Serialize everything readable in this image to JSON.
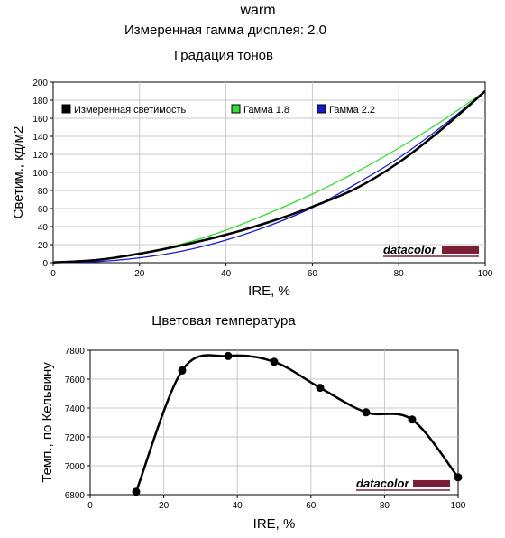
{
  "header": {
    "profile": "warm",
    "gamma": "Измеренная гамма дисплея: 2,0"
  },
  "logo": {
    "text": "datacolor",
    "bar_color": "#7a1f35"
  },
  "chart_data": [
    {
      "type": "line",
      "title": "Градация тонов",
      "xlabel": "IRE, %",
      "ylabel": "Светим., кд/м2",
      "xlim": [
        0,
        100
      ],
      "ylim": [
        0,
        200
      ],
      "xticks": [
        0,
        20,
        40,
        60,
        80,
        100
      ],
      "yticks": [
        0,
        20,
        40,
        60,
        80,
        100,
        120,
        140,
        160,
        180,
        200
      ],
      "grid": true,
      "legend_position": "top",
      "series": [
        {
          "name": "Измеренная светимость",
          "color": "#000000",
          "x": [
            0,
            10,
            20,
            30,
            40,
            50,
            60,
            70,
            80,
            90,
            100
          ],
          "y": [
            0.2,
            3,
            10,
            19.5,
            31,
            45,
            62,
            82,
            111,
            148,
            190
          ]
        },
        {
          "name": "Гамма 1.8",
          "color": "#33dd33",
          "x": [
            0,
            10,
            20,
            30,
            40,
            50,
            60,
            70,
            80,
            90,
            100
          ],
          "y": [
            0.2,
            3,
            10,
            21,
            36,
            55,
            76,
            100,
            127,
            157,
            190
          ]
        },
        {
          "name": "Гамма 2.2",
          "color": "#1a1acc",
          "x": [
            0,
            10,
            20,
            30,
            40,
            50,
            60,
            70,
            80,
            90,
            100
          ],
          "y": [
            0.2,
            1.2,
            5.4,
            13,
            25,
            41,
            61,
            87,
            116,
            151,
            190
          ]
        }
      ]
    },
    {
      "type": "line",
      "title": "Цветовая температура",
      "xlabel": "IRE, %",
      "ylabel": "Темп., по Кельвину",
      "xlim": [
        0,
        100
      ],
      "ylim": [
        6800,
        7800
      ],
      "xticks": [
        0,
        20,
        40,
        60,
        80,
        100
      ],
      "yticks": [
        6800,
        7000,
        7200,
        7400,
        7600,
        7800
      ],
      "grid": true,
      "series": [
        {
          "color": "#000000",
          "x": [
            12.5,
            25,
            37.5,
            50,
            62.5,
            75,
            87.5,
            100
          ],
          "y": [
            6820,
            7660,
            7760,
            7720,
            7540,
            7370,
            7320,
            6920
          ]
        }
      ]
    }
  ]
}
